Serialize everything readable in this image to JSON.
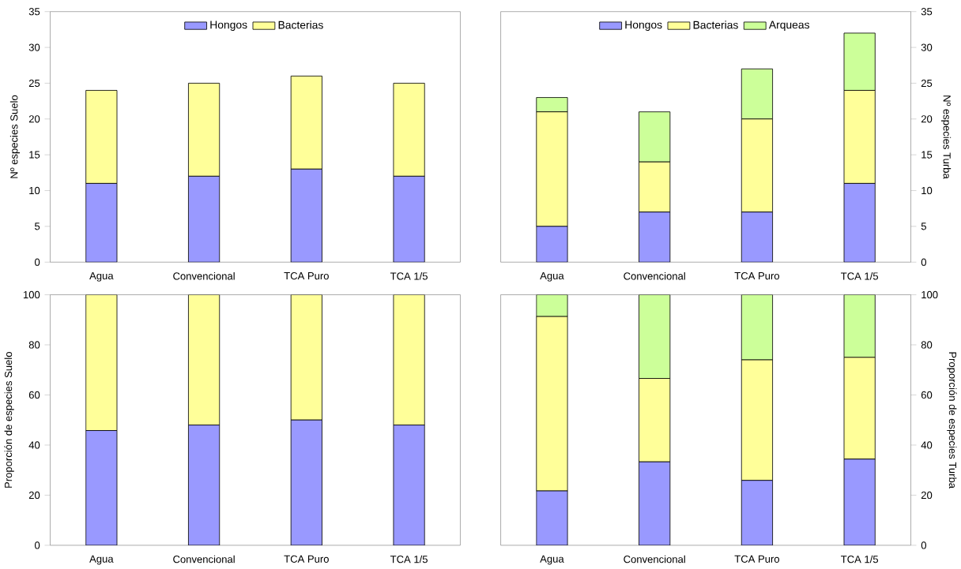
{
  "chart_data": [
    {
      "type": "bar",
      "stacked": true,
      "categories": [
        "Agua",
        "Convencional",
        "TCA Puro",
        "TCA 1/5"
      ],
      "ylabel": "Nº especies Suelo",
      "ylim": [
        0,
        35
      ],
      "yticks": [
        0,
        5,
        10,
        15,
        20,
        25,
        30,
        35
      ],
      "legend": "top",
      "series": [
        {
          "name": "Hongos",
          "color": "#9999ff",
          "values": [
            11,
            12,
            13,
            12
          ]
        },
        {
          "name": "Bacterias",
          "color": "#ffff99",
          "values": [
            13,
            13,
            13,
            13
          ]
        }
      ]
    },
    {
      "type": "bar",
      "stacked": true,
      "categories": [
        "Agua",
        "Convencional",
        "TCA Puro",
        "TCA 1/5"
      ],
      "y2label": "Nº especies Turba",
      "y2lim": [
        0,
        35
      ],
      "y2ticks": [
        0,
        5,
        10,
        15,
        20,
        25,
        30,
        35
      ],
      "legend": "top",
      "series": [
        {
          "name": "Hongos",
          "color": "#9999ff",
          "axis": "y2",
          "values": [
            5,
            7,
            7,
            11
          ]
        },
        {
          "name": "Bacterias",
          "color": "#ffff99",
          "axis": "y2",
          "values": [
            16,
            7,
            13,
            13
          ]
        },
        {
          "name": "Arqueas",
          "color": "#ccff99",
          "axis": "y2",
          "values": [
            2,
            7,
            7,
            8
          ]
        }
      ]
    },
    {
      "type": "bar",
      "stacked": true,
      "categories": [
        "Agua",
        "Convencional",
        "TCA Puro",
        "TCA 1/5"
      ],
      "ylabel": "Proporción de especies Suelo",
      "ylim": [
        0,
        100
      ],
      "yticks": [
        0,
        20,
        40,
        60,
        80,
        100
      ],
      "series": [
        {
          "color": "#9999ff",
          "values": [
            45.8,
            48,
            50,
            48
          ]
        },
        {
          "color": "#ffff99",
          "values": [
            54.2,
            52,
            50,
            52
          ]
        }
      ]
    },
    {
      "type": "bar",
      "stacked": true,
      "categories": [
        "Agua",
        "Convencional",
        "TCA Puro",
        "TCA 1/5"
      ],
      "y2label": "Proporción de especies Turba",
      "y2lim": [
        0,
        100
      ],
      "y2ticks": [
        0,
        20,
        40,
        60,
        80,
        100
      ],
      "series": [
        {
          "color": "#9999ff",
          "axis": "y2",
          "values": [
            21.7,
            33.3,
            25.9,
            34.4
          ]
        },
        {
          "color": "#ffff99",
          "axis": "y2",
          "values": [
            69.6,
            33.3,
            48.1,
            40.6
          ]
        },
        {
          "color": "#ccff99",
          "axis": "y2",
          "values": [
            8.7,
            33.4,
            26,
            25
          ]
        }
      ]
    }
  ]
}
